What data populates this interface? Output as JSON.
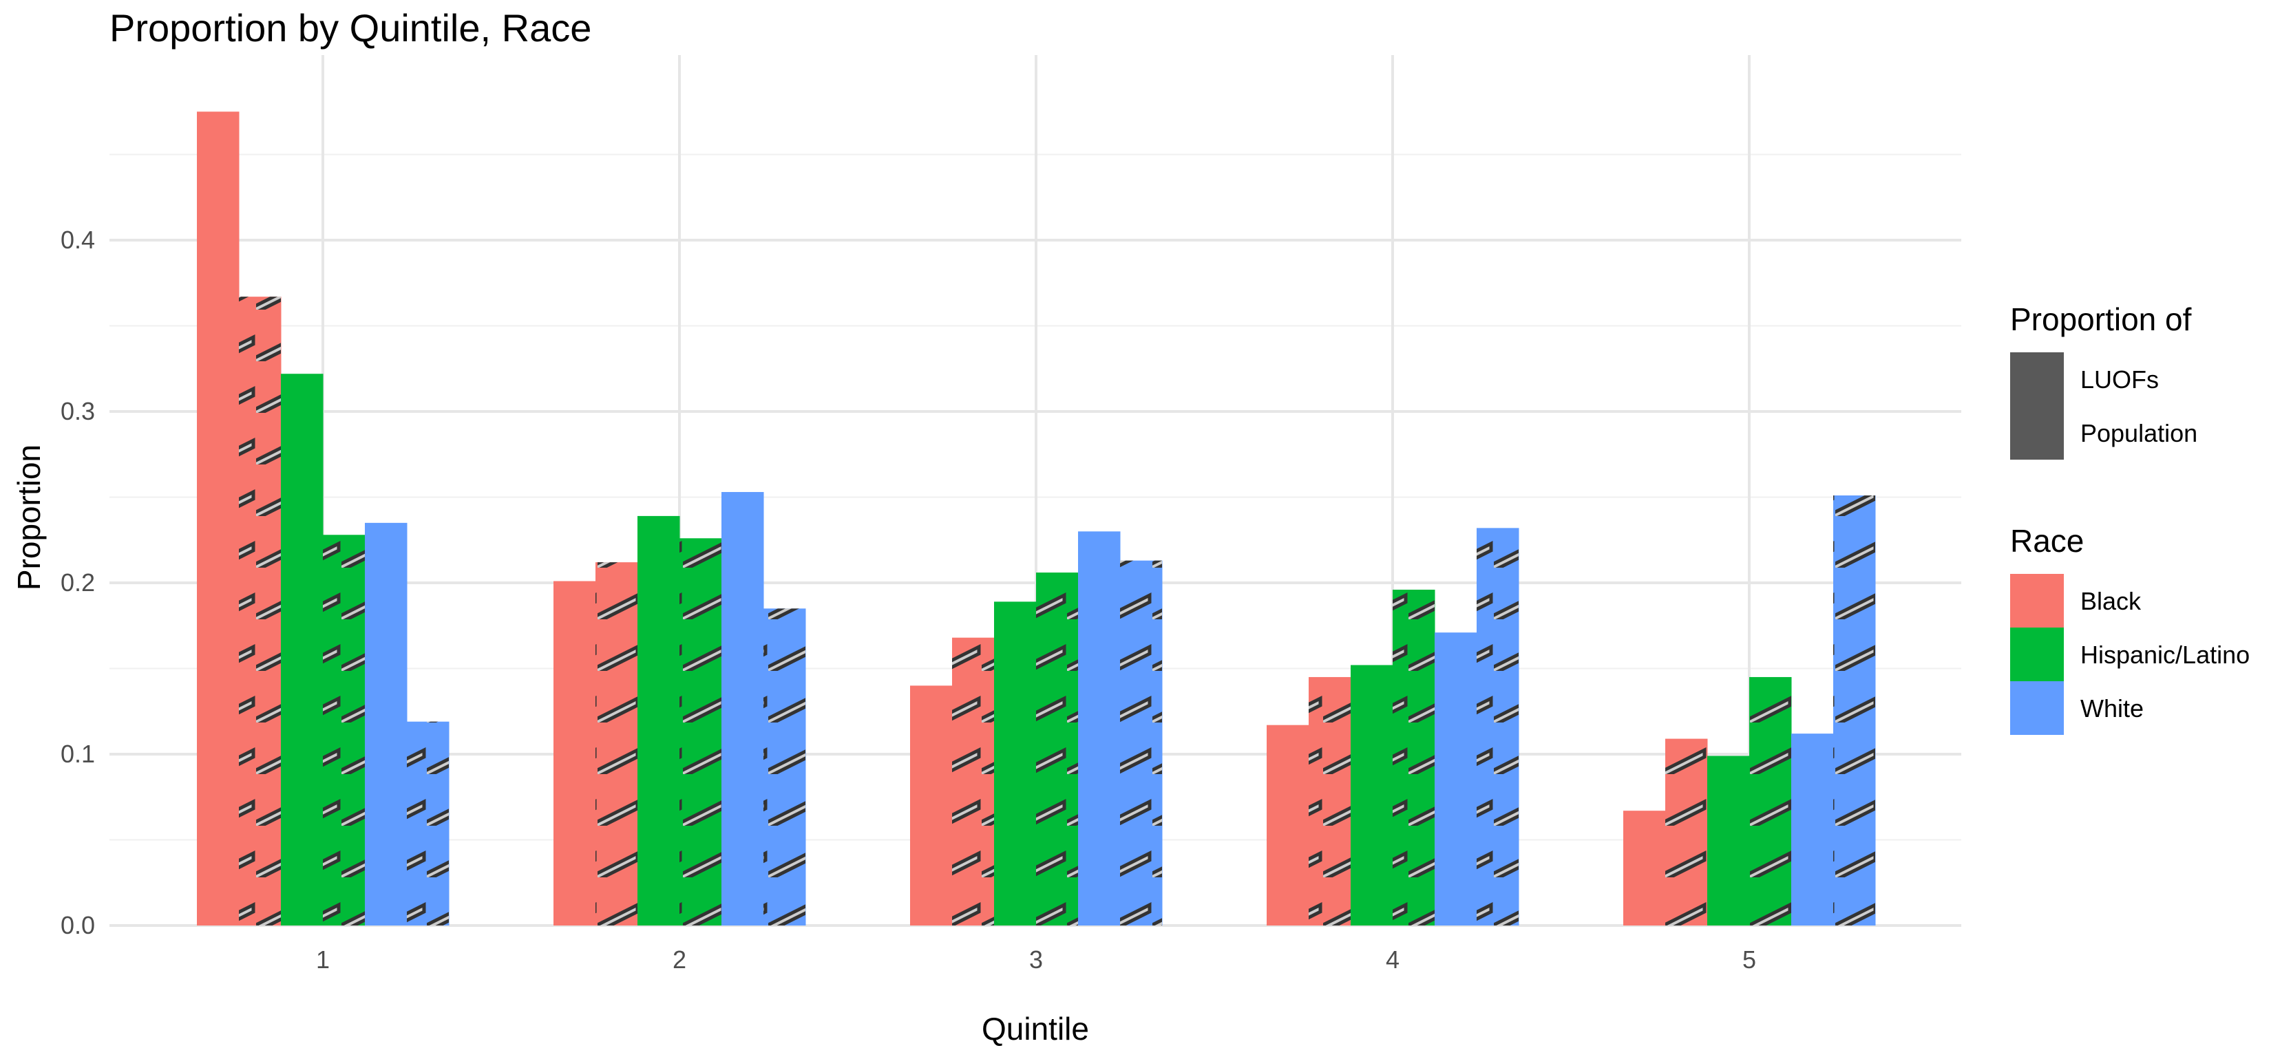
{
  "title": "Proportion by Quintile, Race",
  "chart_data": {
    "type": "bar",
    "title": "Proportion by Quintile, Race",
    "xlabel": "Quintile",
    "ylabel": "Proportion",
    "categories": [
      "1",
      "2",
      "3",
      "4",
      "5"
    ],
    "ylim": [
      0,
      0.48
    ],
    "yticks": [
      0.0,
      0.1,
      0.2,
      0.3,
      0.4
    ],
    "ytick_labels": [
      "0.0",
      "0.1",
      "0.2",
      "0.3",
      "0.4"
    ],
    "grid": true,
    "legend_position": "right",
    "series": [
      {
        "race": "Black",
        "proportion_of": "LUOFs",
        "values": [
          0.475,
          0.201,
          0.14,
          0.117,
          0.067
        ]
      },
      {
        "race": "Black",
        "proportion_of": "Population",
        "values": [
          0.367,
          0.212,
          0.168,
          0.145,
          0.109
        ]
      },
      {
        "race": "Hispanic/Latino",
        "proportion_of": "LUOFs",
        "values": [
          0.322,
          0.239,
          0.189,
          0.152,
          0.099
        ]
      },
      {
        "race": "Hispanic/Latino",
        "proportion_of": "Population",
        "values": [
          0.228,
          0.226,
          0.206,
          0.196,
          0.145
        ]
      },
      {
        "race": "White",
        "proportion_of": "LUOFs",
        "values": [
          0.235,
          0.253,
          0.23,
          0.171,
          0.112
        ]
      },
      {
        "race": "White",
        "proportion_of": "Population",
        "values": [
          0.119,
          0.185,
          0.213,
          0.232,
          0.251
        ]
      }
    ],
    "colors": {
      "Black": "#F8766D",
      "Hispanic/Latino": "#00BA38",
      "White": "#619CFF"
    },
    "legends": {
      "proportion_of": {
        "title": "Proportion of",
        "items": [
          "LUOFs",
          "Population"
        ]
      },
      "race": {
        "title": "Race",
        "items": [
          "Black",
          "Hispanic/Latino",
          "White"
        ]
      }
    }
  }
}
